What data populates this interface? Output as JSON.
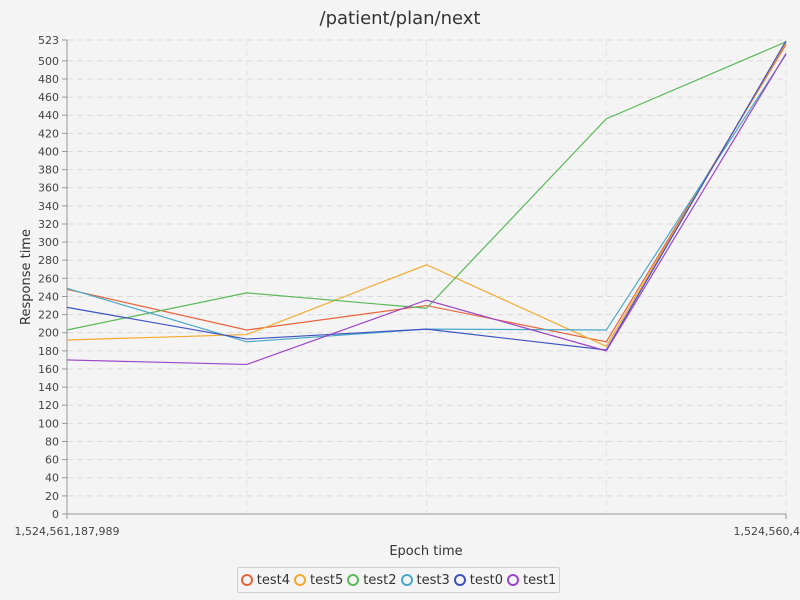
{
  "chart_data": {
    "type": "line",
    "title": "/patient/plan/next",
    "xlabel": "Epoch time",
    "ylabel": "Response time",
    "x": [
      0,
      1,
      2,
      3,
      4
    ],
    "x_tick_labels": [
      "1,524,561,187,989",
      "1,524,560,4"
    ],
    "ylim": [
      0,
      523
    ],
    "y_ticks": [
      0,
      20,
      40,
      60,
      80,
      100,
      120,
      140,
      160,
      180,
      200,
      220,
      240,
      260,
      280,
      300,
      320,
      340,
      360,
      380,
      400,
      420,
      440,
      460,
      480,
      500,
      523
    ],
    "grid": true,
    "legend_position": "bottom",
    "series": [
      {
        "name": "test4",
        "color": "#e8643c",
        "values": [
          248,
          203,
          230,
          190,
          518
        ]
      },
      {
        "name": "test5",
        "color": "#f4aa2e",
        "values": [
          192,
          198,
          275,
          185,
          520
        ]
      },
      {
        "name": "test2",
        "color": "#5bb85b",
        "values": [
          203,
          244,
          227,
          436,
          521
        ]
      },
      {
        "name": "test3",
        "color": "#4aa8c8",
        "values": [
          249,
          190,
          204,
          203,
          507
        ]
      },
      {
        "name": "test0",
        "color": "#3d52c0",
        "values": [
          228,
          193,
          204,
          181,
          522
        ]
      },
      {
        "name": "test1",
        "color": "#9b45c8",
        "values": [
          170,
          165,
          236,
          180,
          508
        ]
      }
    ]
  }
}
